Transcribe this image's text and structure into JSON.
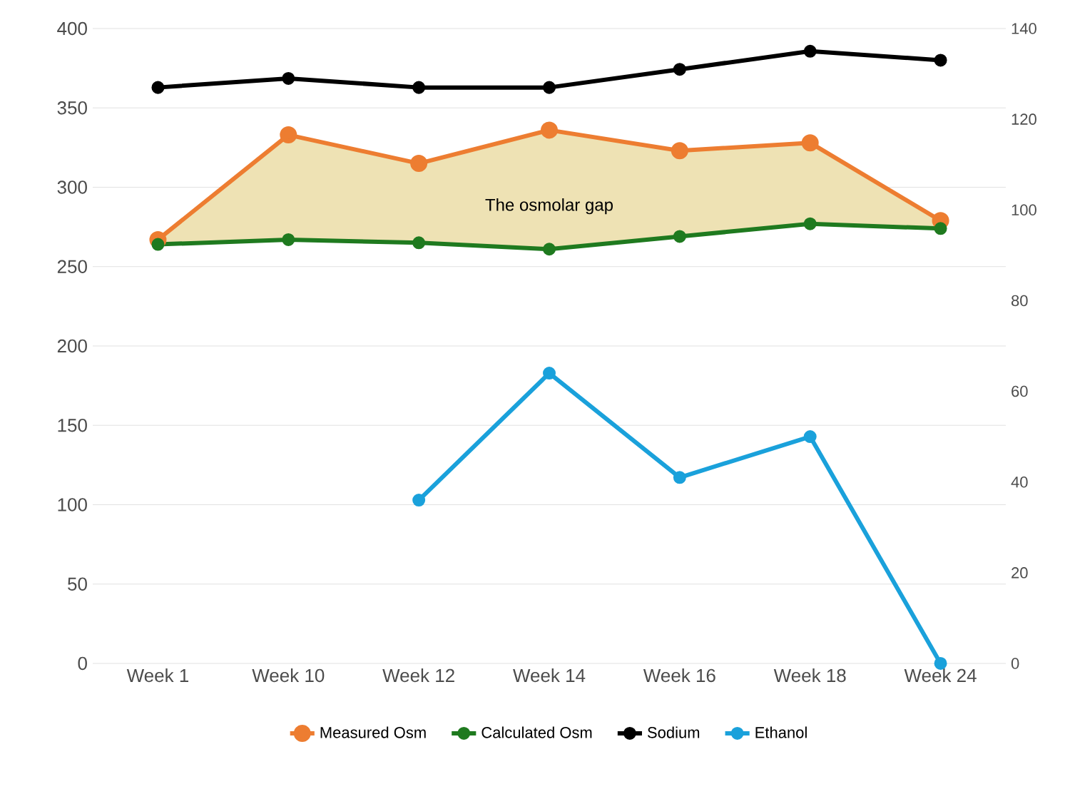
{
  "chart_data": {
    "type": "line",
    "categories": [
      "Week 1",
      "Week 10",
      "Week 12",
      "Week 14",
      "Week 16",
      "Week 18",
      "Week 24"
    ],
    "series": [
      {
        "name": "Measured Osm",
        "color": "#ED7D31",
        "values": [
          267,
          333,
          315,
          336,
          323,
          328,
          279
        ],
        "lower": [
          264,
          267,
          265,
          261,
          269,
          277,
          274
        ],
        "upper": [
          267,
          333,
          315,
          336,
          323,
          328,
          279
        ]
      },
      {
        "name": "Calculated Osm",
        "color": "#1F7A1F",
        "values": [
          264,
          267,
          265,
          261,
          269,
          277,
          274
        ]
      },
      {
        "name": "Sodium",
        "color": "#000000",
        "values": [
          127,
          129,
          127,
          127,
          131,
          135,
          133
        ],
        "axis": "y2"
      },
      {
        "name": "Ethanol",
        "color": "#1AA1DB",
        "values": [
          null,
          null,
          36,
          64,
          41,
          50,
          0
        ],
        "axis": "y2"
      }
    ],
    "ylim": [
      0,
      400
    ],
    "yticks": [
      0,
      50,
      100,
      150,
      200,
      250,
      300,
      350,
      400
    ],
    "y2lim": [
      0,
      140
    ],
    "y2ticks": [
      0,
      20,
      40,
      60,
      80,
      100,
      120,
      140
    ],
    "annotations": [
      "The osmolar gap"
    ],
    "grid": "y",
    "legend": "bottom",
    "marker": "circle",
    "line_style": "solid"
  }
}
